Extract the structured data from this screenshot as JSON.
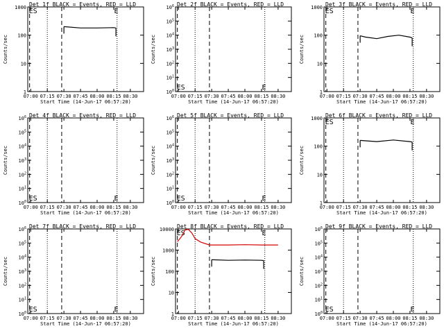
{
  "colors": {
    "events": "#000000",
    "lld": "#d40000",
    "background": "#ffffff"
  },
  "chart_data": [
    {
      "type": "line",
      "title": "Det 1f BLACK = Events, RED = LLD",
      "xlabel": "Start Time (14-Jun-17 06:57:20)",
      "ylabel": "Counts/sec",
      "xticks": [
        "07:00",
        "07:15",
        "07:30",
        "07:45",
        "08:00",
        "08:15",
        "08:30"
      ],
      "yscale": "log",
      "ylim": [
        1,
        1000
      ],
      "yticks": [
        "1",
        "10",
        "100",
        "1000"
      ],
      "vlines_dashed": [
        "06:59",
        "07:28"
      ],
      "vlines_dotted": [
        "07:15",
        "08:18"
      ],
      "markers": [
        {
          "text": "ES",
          "x": "06:59",
          "y": "top"
        },
        {
          "text": "E",
          "x": "08:16",
          "y": "top"
        }
      ],
      "series": [
        {
          "color": "black",
          "x": [
            "07:30",
            "07:45",
            "08:00",
            "08:15",
            "08:17"
          ],
          "values": [
            200,
            180,
            180,
            185,
            180
          ]
        }
      ]
    },
    {
      "type": "line",
      "title": "Det 2f BLACK = Events, RED = LLD",
      "xlabel": "Start Time (14-Jun-17 06:57:20)",
      "ylabel": "Counts/sec",
      "xticks": [
        "07:00",
        "07:15",
        "07:30",
        "07:45",
        "08:00",
        "08:15",
        "08:30"
      ],
      "yscale": "log",
      "ylim": [
        1,
        1000000
      ],
      "yticks": [
        "10^0",
        "10^1",
        "10^2",
        "10^3",
        "10^4",
        "10^5",
        "10^6"
      ],
      "vlines_dashed": [
        "06:59",
        "07:28"
      ],
      "vlines_dotted": [
        "07:15",
        "08:18"
      ],
      "markers": [
        {
          "text": "ES",
          "x": "06:59",
          "y": "bottom"
        },
        {
          "text": "E",
          "x": "08:16",
          "y": "bottom"
        }
      ],
      "series": []
    },
    {
      "type": "line",
      "title": "Det 3f BLACK = Events, RED = LLD",
      "xlabel": "Start Time (14-Jun-17 06:57:20)",
      "ylabel": "Counts/sec",
      "xticks": [
        "07:00",
        "07:15",
        "07:30",
        "07:45",
        "08:00",
        "08:15",
        "08:30"
      ],
      "yscale": "log",
      "ylim": [
        1,
        1000
      ],
      "yticks": [
        "1",
        "10",
        "100",
        "1000"
      ],
      "vlines_dashed": [
        "06:59",
        "07:28"
      ],
      "vlines_dotted": [
        "07:15",
        "08:18"
      ],
      "markers": [
        {
          "text": "ES",
          "x": "06:59",
          "y": "top"
        },
        {
          "text": "E",
          "x": "08:16",
          "y": "top"
        }
      ],
      "series": [
        {
          "color": "black",
          "x": [
            "07:30",
            "07:35",
            "07:45",
            "07:55",
            "08:05",
            "08:15",
            "08:17"
          ],
          "values": [
            95,
            85,
            75,
            90,
            100,
            85,
            80
          ]
        }
      ]
    },
    {
      "type": "line",
      "title": "Det 4f BLACK = Events, RED = LLD",
      "xlabel": "Start Time (14-Jun-17 06:57:20)",
      "ylabel": "Counts/sec",
      "xticks": [
        "07:00",
        "07:15",
        "07:30",
        "07:45",
        "08:00",
        "08:15",
        "08:30"
      ],
      "yscale": "log",
      "ylim": [
        1,
        1000000
      ],
      "yticks": [
        "10^0",
        "10^1",
        "10^2",
        "10^3",
        "10^4",
        "10^5",
        "10^6"
      ],
      "vlines_dashed": [
        "06:59",
        "07:28"
      ],
      "vlines_dotted": [
        "07:15",
        "08:18"
      ],
      "markers": [
        {
          "text": "ES",
          "x": "06:59",
          "y": "bottom"
        },
        {
          "text": "E",
          "x": "08:16",
          "y": "bottom"
        }
      ],
      "series": []
    },
    {
      "type": "line",
      "title": "Det 5f BLACK = Events, RED = LLD",
      "xlabel": "Start Time (14-Jun-17 06:57:20)",
      "ylabel": "Counts/sec",
      "xticks": [
        "07:00",
        "07:15",
        "07:30",
        "07:45",
        "08:00",
        "08:15",
        "08:30"
      ],
      "yscale": "log",
      "ylim": [
        1,
        1000000
      ],
      "yticks": [
        "10^0",
        "10^1",
        "10^2",
        "10^3",
        "10^4",
        "10^5",
        "10^6"
      ],
      "vlines_dashed": [
        "06:59",
        "07:28"
      ],
      "vlines_dotted": [
        "07:15",
        "08:18"
      ],
      "markers": [
        {
          "text": "ES",
          "x": "06:59",
          "y": "bottom"
        },
        {
          "text": "E",
          "x": "08:16",
          "y": "bottom"
        }
      ],
      "series": []
    },
    {
      "type": "line",
      "title": "Det 6f BLACK = Events, RED = LLD",
      "xlabel": "Start Time (14-Jun-17 06:57:20)",
      "ylabel": "Counts/sec",
      "xticks": [
        "07:00",
        "07:15",
        "07:30",
        "07:45",
        "08:00",
        "08:15",
        "08:30"
      ],
      "yscale": "log",
      "ylim": [
        1,
        1000
      ],
      "yticks": [
        "1",
        "10",
        "100",
        "1000"
      ],
      "vlines_dashed": [
        "06:59",
        "07:28"
      ],
      "vlines_dotted": [
        "07:15",
        "08:18"
      ],
      "markers": [
        {
          "text": "ES",
          "x": "06:59",
          "y": "top"
        },
        {
          "text": "E",
          "x": "08:16",
          "y": "top"
        }
      ],
      "series": [
        {
          "color": "black",
          "x": [
            "07:30",
            "07:45",
            "08:00",
            "08:15",
            "08:17"
          ],
          "values": [
            160,
            145,
            165,
            145,
            140
          ]
        }
      ]
    },
    {
      "type": "line",
      "title": "Det 7f BLACK = Events, RED = LLD",
      "xlabel": "Start Time (14-Jun-17 06:57:20)",
      "ylabel": "Counts/sec",
      "xticks": [
        "07:00",
        "07:15",
        "07:30",
        "07:45",
        "08:00",
        "08:15",
        "08:30"
      ],
      "yscale": "log",
      "ylim": [
        1,
        1000000
      ],
      "yticks": [
        "10^0",
        "10^1",
        "10^2",
        "10^3",
        "10^4",
        "10^5",
        "10^6"
      ],
      "vlines_dashed": [
        "06:59",
        "07:28"
      ],
      "vlines_dotted": [
        "07:15",
        "08:18"
      ],
      "markers": [
        {
          "text": "ES",
          "x": "06:59",
          "y": "bottom"
        },
        {
          "text": "E",
          "x": "08:16",
          "y": "bottom"
        }
      ],
      "series": []
    },
    {
      "type": "line",
      "title": "Det 8f BLACK = Events, RED = LLD",
      "xlabel": "Start Time (14-Jun-17 06:57:20)",
      "ylabel": "Counts/sec",
      "xticks": [
        "07:00",
        "07:15",
        "07:30",
        "07:45",
        "08:00",
        "08:15",
        "08:30"
      ],
      "yscale": "log",
      "ylim": [
        1,
        10000
      ],
      "yticks": [
        "1",
        "10",
        "100",
        "1000",
        "10000"
      ],
      "vlines_dashed": [
        "06:59",
        "07:28"
      ],
      "vlines_dotted": [
        "07:15",
        "08:18"
      ],
      "markers": [
        {
          "text": "ES",
          "x": "06:59",
          "y": "top"
        },
        {
          "text": "E",
          "x": "08:16",
          "y": "top"
        }
      ],
      "series": [
        {
          "color": "red",
          "x": [
            "06:59",
            "07:03",
            "07:06",
            "07:09",
            "07:12",
            "07:15",
            "07:20",
            "07:28",
            "07:45",
            "08:00",
            "08:15",
            "08:30"
          ],
          "values": [
            2500,
            4500,
            9000,
            9500,
            6500,
            3500,
            2400,
            1750,
            1750,
            1800,
            1750,
            1750
          ]
        },
        {
          "color": "black",
          "x": [
            "07:30",
            "07:45",
            "08:00",
            "08:15",
            "08:17"
          ],
          "values": [
            350,
            330,
            340,
            330,
            320
          ]
        }
      ]
    },
    {
      "type": "line",
      "title": "Det 9f BLACK = Events, RED = LLD",
      "xlabel": "Start Time (14-Jun-17 06:57:20)",
      "ylabel": "Counts/sec",
      "xticks": [
        "07:00",
        "07:15",
        "07:30",
        "07:45",
        "08:00",
        "08:15",
        "08:30"
      ],
      "yscale": "log",
      "ylim": [
        1,
        1000000
      ],
      "yticks": [
        "10^0",
        "10^1",
        "10^2",
        "10^3",
        "10^4",
        "10^5",
        "10^6"
      ],
      "vlines_dashed": [
        "06:59",
        "07:28"
      ],
      "vlines_dotted": [
        "07:15",
        "08:18"
      ],
      "markers": [
        {
          "text": "ES",
          "x": "06:59",
          "y": "bottom"
        },
        {
          "text": "E",
          "x": "08:16",
          "y": "bottom"
        }
      ],
      "series": []
    }
  ]
}
